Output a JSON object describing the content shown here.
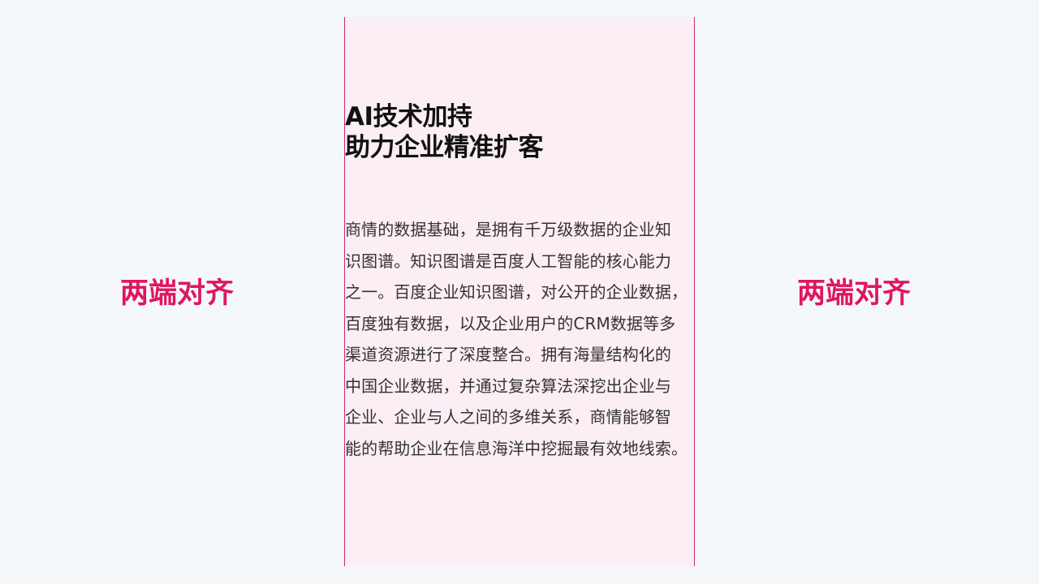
{
  "labels": {
    "left": "两端对齐",
    "right": "两端对齐"
  },
  "panel": {
    "title_lines": [
      "AI技术加持",
      "助力企业精准扩客"
    ],
    "body_lines": [
      "商情的数据基础，是拥有千万级数据的企业知",
      "识图谱。知识图谱是百度人工智能的核心能力",
      "之一。百度企业知识图谱，对公开的企业数据，",
      "百度独有数据，以及企业用户的CRM数据等多",
      "渠道资源进行了深度整合。拥有海量结构化的",
      "中国企业数据，并通过复杂算法深挖出企业与",
      "企业、企业与人之间的多维关系，商情能够智",
      "能的帮助企业在信息海洋中挖掘最有效地线索。"
    ]
  },
  "colors": {
    "accent": "#e0165f",
    "panel_bg": "#fbeef5",
    "panel_border": "#cc2c6b",
    "page_bg": "#f5f8fa"
  }
}
